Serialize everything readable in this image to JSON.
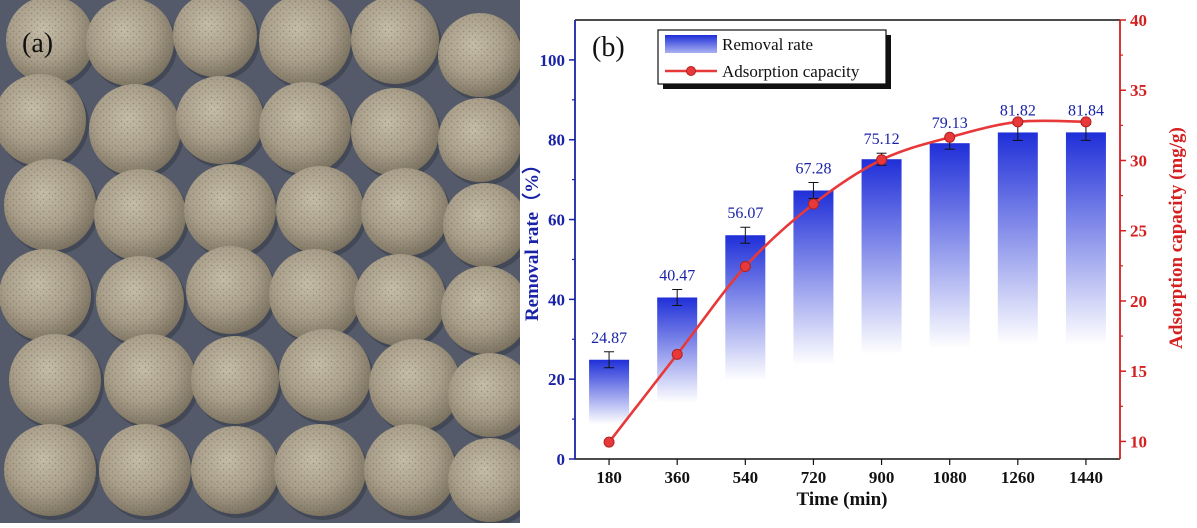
{
  "panel_a": {
    "label": "(a)",
    "photo_description": "porous-spheres-photo"
  },
  "panel_b": {
    "label": "(b)"
  },
  "colors": {
    "bar_top": "#1f2fd8",
    "bar_bottom": "#ffffff",
    "line": "#e8393a",
    "left_axis": "#1a23a8",
    "right_axis": "#d42020",
    "bar_label": "#1a23a8"
  },
  "chart_data": {
    "type": "bar+line",
    "categories": [
      "180",
      "360",
      "540",
      "720",
      "900",
      "1080",
      "1260",
      "1440"
    ],
    "xlabel": "Time (min)",
    "series": [
      {
        "name": "Removal rate",
        "type": "bar",
        "axis": "left",
        "values": [
          24.87,
          40.47,
          56.07,
          67.28,
          75.12,
          79.13,
          81.82,
          81.84
        ],
        "value_labels": [
          "24.87",
          "40.47",
          "56.07",
          "67.28",
          "75.12",
          "79.13",
          "81.82",
          "81.84"
        ],
        "error": [
          2.0,
          2.0,
          2.0,
          2.0,
          1.5,
          1.5,
          2.0,
          2.0
        ]
      },
      {
        "name": "Adsorption capacity",
        "type": "line",
        "axis": "right",
        "values": [
          9.95,
          16.2,
          22.45,
          26.9,
          30.05,
          31.65,
          32.75,
          32.75
        ]
      }
    ],
    "left_axis": {
      "label": "Removal rate（%）",
      "ylim": [
        0,
        110
      ],
      "ticks": [
        0,
        20,
        40,
        60,
        80,
        100
      ]
    },
    "right_axis": {
      "label": "Adsorption capacity (mg/g)",
      "ylim": [
        8.75,
        40
      ],
      "ticks": [
        10,
        15,
        20,
        25,
        30,
        35,
        40
      ]
    },
    "legend": {
      "position": "top-center"
    },
    "grid": false
  }
}
